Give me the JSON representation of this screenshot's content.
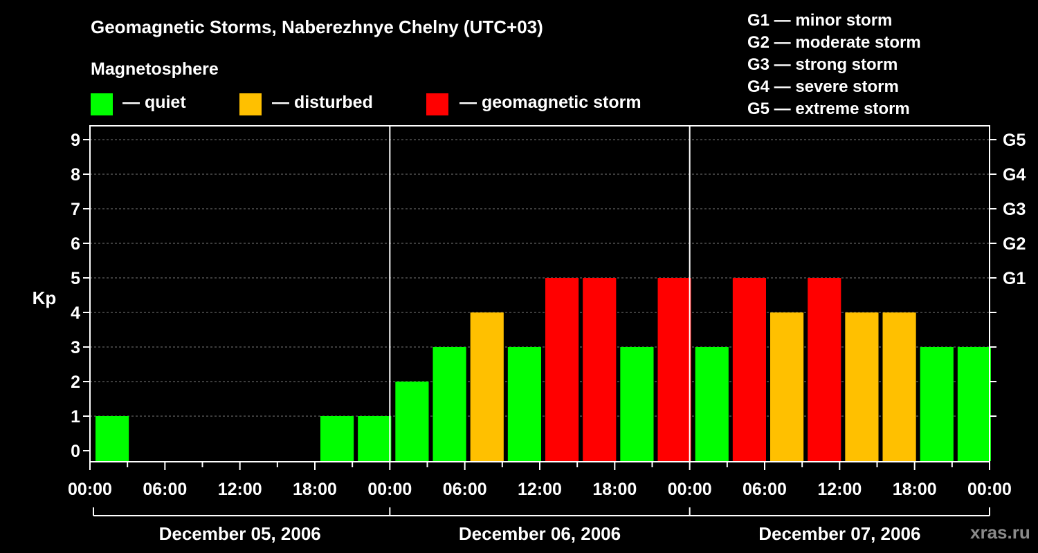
{
  "title": "Geomagnetic Storms, Naberezhnye Chelny (UTC+03)",
  "subtitle": "Magnetosphere",
  "legend": [
    {
      "label": "— quiet",
      "color": "#00ff00"
    },
    {
      "label": "— disturbed",
      "color": "#ffc000"
    },
    {
      "label": "— geomagnetic storm",
      "color": "#ff0000"
    }
  ],
  "g_scale": [
    "G1 — minor storm",
    "G2 — moderate storm",
    "G3 — strong storm",
    "G4 — severe storm",
    "G5 — extreme storm"
  ],
  "watermark": "xras.ru",
  "chart_data": {
    "type": "bar",
    "title": "Geomagnetic Storms, Naberezhnye Chelny (UTC+03)",
    "ylabel": "Kp",
    "ylim": [
      0,
      9
    ],
    "yticks": [
      "0",
      "1",
      "2",
      "3",
      "4",
      "5",
      "6",
      "7",
      "8",
      "9"
    ],
    "right_ticks": [
      {
        "value": 5,
        "label": "G1"
      },
      {
        "value": 6,
        "label": "G2"
      },
      {
        "value": 7,
        "label": "G3"
      },
      {
        "value": 8,
        "label": "G4"
      },
      {
        "value": 9,
        "label": "G5"
      }
    ],
    "xtick_labels": [
      "00:00",
      "06:00",
      "12:00",
      "18:00",
      "00:00",
      "06:00",
      "12:00",
      "18:00",
      "00:00",
      "06:00",
      "12:00",
      "18:00",
      "00:00"
    ],
    "days": [
      "December 05, 2006",
      "December 06, 2006",
      "December 07, 2006"
    ],
    "interval_hours": 3,
    "values": [
      1,
      0,
      0,
      0,
      0,
      0,
      1,
      1,
      2,
      3,
      4,
      3,
      5,
      5,
      3,
      5,
      3,
      5,
      4,
      5,
      4,
      4,
      3,
      3
    ],
    "colors": {
      "quiet": "#00ff00",
      "disturbed": "#ffc000",
      "storm": "#ff0000"
    },
    "grid": true
  }
}
